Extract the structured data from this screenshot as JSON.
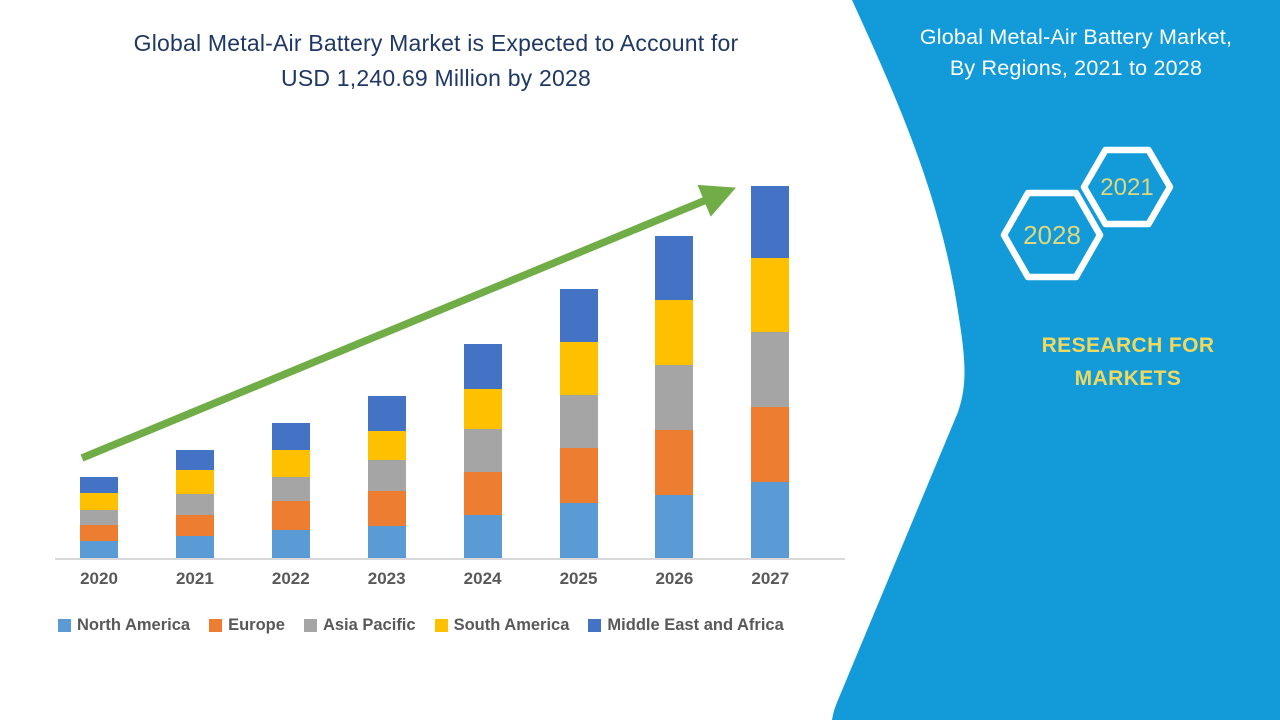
{
  "chart": {
    "title_line1": "Global Metal-Air Battery Market is Expected to Account for",
    "title_line2": "USD 1,240.69 Million by 2028"
  },
  "chart_data": {
    "type": "bar",
    "stacked": true,
    "title": "Global Metal-Air Battery Market is Expected to Account for USD 1,240.69 Million by 2028",
    "xlabel": "",
    "ylabel": "",
    "grid": false,
    "y_axis_shown": false,
    "units": "relative height, estimated from pixels (chart has no y-axis labels)",
    "legend_position": "bottom",
    "categories": [
      "2020",
      "2021",
      "2022",
      "2023",
      "2024",
      "2025",
      "2026",
      "2027"
    ],
    "series": [
      {
        "name": "North America",
        "color": "#5B9BD5",
        "values": [
          17,
          22,
          28,
          32,
          43,
          55,
          63,
          76
        ]
      },
      {
        "name": "Europe",
        "color": "#ED7D31",
        "values": [
          16,
          21,
          29,
          35,
          43,
          55,
          65,
          75
        ]
      },
      {
        "name": "Asia Pacific",
        "color": "#A5A5A5",
        "values": [
          15,
          21,
          24,
          31,
          43,
          53,
          65,
          75
        ]
      },
      {
        "name": "South America",
        "color": "#FFC000",
        "values": [
          17,
          24,
          27,
          29,
          40,
          53,
          65,
          74
        ]
      },
      {
        "name": "Middle East and Africa",
        "color": "#4472C4",
        "values": [
          16,
          20,
          27,
          35,
          45,
          53,
          64,
          72
        ]
      }
    ],
    "estimated_totals": [
      81,
      108,
      135,
      162,
      214,
      269,
      322,
      372
    ],
    "trend_arrow": true,
    "trend_arrow_color": "#70AD47"
  },
  "panel": {
    "title_line1": "Global Metal-Air Battery Market,",
    "title_line2": "By Regions, 2021 to 2028",
    "hexagons": [
      {
        "label": "2028"
      },
      {
        "label": "2021"
      }
    ],
    "brand_line1": "RESEARCH FOR",
    "brand_line2": "MARKETS",
    "background_color": "#129BD8",
    "hexagon_text_color": "#DFD77F",
    "brand_text_color": "#F1D95F"
  },
  "colors": {
    "title_navy": "#203864",
    "axis_line": "#D9D9D9",
    "axis_label_gray": "#595959",
    "arrow_green": "#70AD47"
  }
}
